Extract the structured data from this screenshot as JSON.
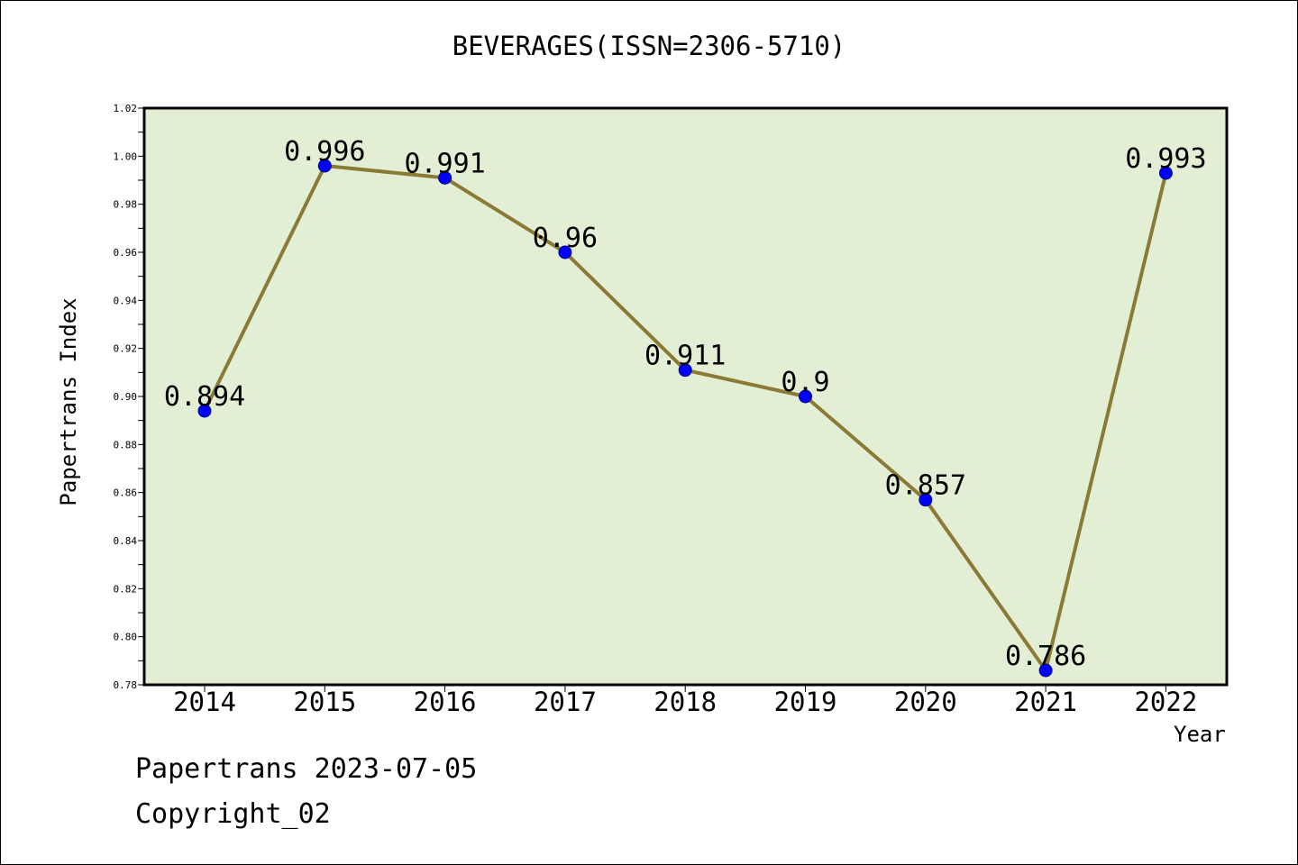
{
  "chart_data": {
    "type": "line",
    "title": "BEVERAGES(ISSN=2306-5710)",
    "xlabel": "Year",
    "ylabel": "Papertrans Index",
    "categories": [
      "2014",
      "2015",
      "2016",
      "2017",
      "2018",
      "2019",
      "2020",
      "2021",
      "2022"
    ],
    "values": [
      0.894,
      0.996,
      0.991,
      0.96,
      0.911,
      0.9,
      0.857,
      0.786,
      0.993
    ],
    "data_labels": [
      "0.894",
      "0.996",
      "0.991",
      "0.96",
      "0.911",
      "0.9",
      "0.857",
      "0.786",
      "0.993"
    ],
    "ylim": [
      0.78,
      1.02
    ],
    "yticks": [
      "0.78",
      "0.80",
      "0.82",
      "0.84",
      "0.86",
      "0.88",
      "0.90",
      "0.92",
      "0.94",
      "0.96",
      "0.98",
      "1.00",
      "1.02"
    ],
    "grid": false,
    "colors": {
      "plot_background": "#e2efd5",
      "line": "#8b7a35",
      "marker": "#0000ff"
    }
  },
  "footer": {
    "date_line": "Papertrans 2023-07-05",
    "copyright": "Copyright_02"
  }
}
